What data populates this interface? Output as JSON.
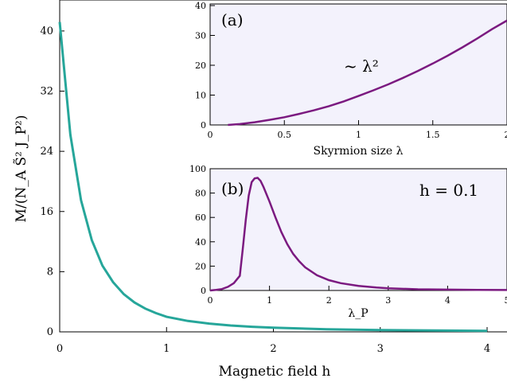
{
  "colors": {
    "main_series": "#26a69a",
    "inset_series": "#7b1a80",
    "inset_background": "#f3f2fc"
  },
  "chart_data": [
    {
      "type": "line",
      "xlabel": "Magnetic field  h",
      "ylabel": "M/(N_A S̃² J_P²)",
      "xlim": [
        0,
        4
      ],
      "ylim": [
        0,
        42
      ],
      "xticks": [
        0,
        1,
        2,
        3,
        4
      ],
      "yticks": [
        0,
        8,
        16,
        24,
        32,
        40
      ],
      "grid": false,
      "series": [
        {
          "x": [
            0,
            0.1,
            0.2,
            0.3,
            0.4,
            0.5,
            0.6,
            0.7,
            0.8,
            0.9,
            1.0,
            1.2,
            1.4,
            1.6,
            1.8,
            2.0,
            2.5,
            3.0,
            3.5,
            4.0
          ],
          "y": [
            41.2,
            26.2,
            17.5,
            12.2,
            8.8,
            6.6,
            5.0,
            3.9,
            3.1,
            2.5,
            2.0,
            1.45,
            1.1,
            0.85,
            0.68,
            0.55,
            0.35,
            0.24,
            0.18,
            0.14
          ]
        }
      ]
    },
    {
      "type": "line",
      "panel": "(a)",
      "annotation": "~ λ²",
      "xlabel": "Skyrmion size  λ",
      "xlim": [
        0,
        2
      ],
      "ylim": [
        0,
        40
      ],
      "xticks": [
        0,
        0.5,
        1,
        1.5,
        2
      ],
      "xtick_labels": [
        "0",
        "0.5",
        "1",
        "1.5",
        "2"
      ],
      "yticks": [
        0,
        10,
        20,
        30,
        40
      ],
      "series": [
        {
          "x": [
            0.12,
            0.2,
            0.3,
            0.4,
            0.5,
            0.6,
            0.7,
            0.8,
            0.9,
            1.0,
            1.1,
            1.2,
            1.3,
            1.4,
            1.5,
            1.6,
            1.7,
            1.8,
            1.9,
            2.0
          ],
          "y": [
            0,
            0.3,
            0.9,
            1.7,
            2.6,
            3.7,
            4.9,
            6.3,
            7.9,
            9.7,
            11.6,
            13.6,
            15.8,
            18.1,
            20.6,
            23.2,
            26.0,
            29.0,
            32.1,
            35.0
          ]
        }
      ]
    },
    {
      "type": "line",
      "panel": "(b)",
      "annotation": "h = 0.1",
      "xlabel": "λ_P",
      "xlim": [
        0,
        5
      ],
      "ylim": [
        0,
        100
      ],
      "xticks": [
        0,
        1,
        2,
        3,
        4,
        5
      ],
      "yticks": [
        0,
        20,
        40,
        60,
        80,
        100
      ],
      "series": [
        {
          "x": [
            0,
            0.1,
            0.2,
            0.3,
            0.4,
            0.5,
            0.55,
            0.6,
            0.65,
            0.7,
            0.75,
            0.8,
            0.85,
            0.9,
            1.0,
            1.1,
            1.2,
            1.3,
            1.4,
            1.5,
            1.6,
            1.8,
            2.0,
            2.2,
            2.5,
            2.8,
            3.0,
            3.5,
            4.0,
            4.5,
            5.0
          ],
          "y": [
            0,
            0.5,
            1.2,
            3,
            6,
            12,
            34,
            58,
            78,
            89,
            92,
            92.5,
            90,
            85,
            73,
            60,
            48,
            38,
            30,
            24,
            19,
            12.5,
            8.5,
            6,
            3.8,
            2.4,
            1.8,
            1.0,
            0.7,
            0.5,
            0.4
          ]
        }
      ]
    }
  ]
}
